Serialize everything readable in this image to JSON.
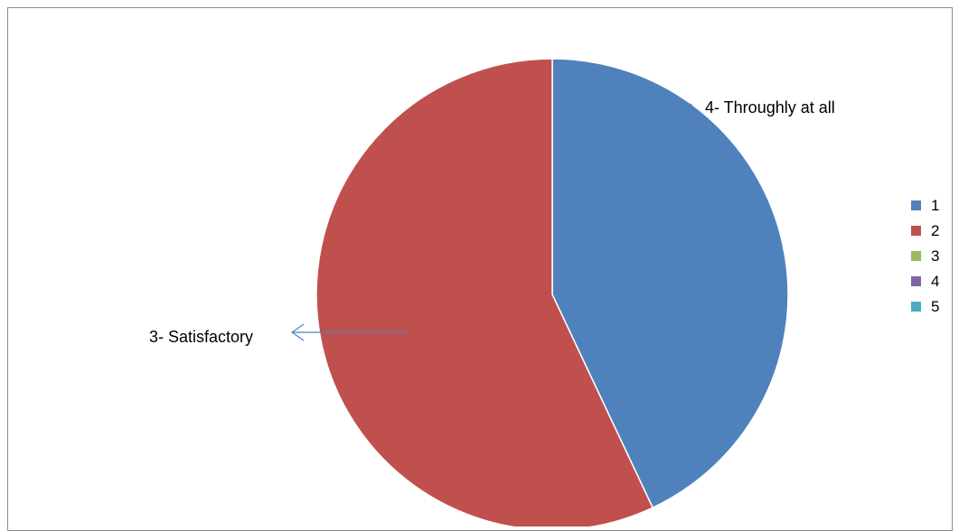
{
  "chart_data": {
    "type": "pie",
    "categories": [
      "1",
      "2",
      "3",
      "4",
      "5"
    ],
    "values": [
      43,
      57,
      0,
      0,
      0
    ],
    "colors": [
      "#4f81bd",
      "#c0504d",
      "#9bbb59",
      "#8064a2",
      "#4bacc6"
    ],
    "title": "",
    "legend_placement": "right",
    "annotations": [
      {
        "text": "4- Throughly at all",
        "slice": 0
      },
      {
        "text": "3- Satisfactory",
        "slice": 1
      }
    ]
  }
}
